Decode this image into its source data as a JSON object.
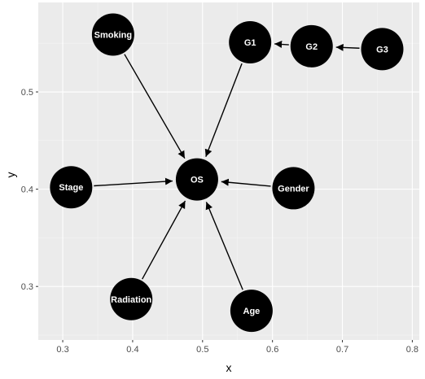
{
  "chart_data": {
    "type": "network",
    "xlabel": "x",
    "ylabel": "y",
    "xlim": [
      0.265,
      0.81
    ],
    "ylim": [
      0.245,
      0.592
    ],
    "x_ticks": [
      0.3,
      0.4,
      0.5,
      0.6,
      0.7,
      0.8
    ],
    "y_ticks": [
      0.3,
      0.4,
      0.5
    ],
    "grid": true,
    "nodes": [
      {
        "id": "os",
        "label": "OS",
        "x": 0.492,
        "y": 0.41
      },
      {
        "id": "smoking",
        "label": "Smoking",
        "x": 0.372,
        "y": 0.559
      },
      {
        "id": "g1",
        "label": "G1",
        "x": 0.568,
        "y": 0.551
      },
      {
        "id": "g2",
        "label": "G2",
        "x": 0.656,
        "y": 0.547
      },
      {
        "id": "g3",
        "label": "G3",
        "x": 0.757,
        "y": 0.544
      },
      {
        "id": "stage",
        "label": "Stage",
        "x": 0.312,
        "y": 0.402
      },
      {
        "id": "gender",
        "label": "Gender",
        "x": 0.63,
        "y": 0.401
      },
      {
        "id": "radiation",
        "label": "Radiation",
        "x": 0.398,
        "y": 0.287
      },
      {
        "id": "age",
        "label": "Age",
        "x": 0.57,
        "y": 0.275
      }
    ],
    "edges": [
      {
        "from": "smoking",
        "to": "os"
      },
      {
        "from": "g1",
        "to": "os"
      },
      {
        "from": "g2",
        "to": "g1"
      },
      {
        "from": "g3",
        "to": "g2"
      },
      {
        "from": "stage",
        "to": "os"
      },
      {
        "from": "gender",
        "to": "os"
      },
      {
        "from": "radiation",
        "to": "os"
      },
      {
        "from": "age",
        "to": "os"
      }
    ],
    "colors": {
      "panel": "#ebebeb",
      "grid_major": "#ffffff",
      "grid_minor": "#f5f5f5",
      "node": "#000000",
      "node_label": "#ffffff",
      "edge": "#000000"
    }
  }
}
